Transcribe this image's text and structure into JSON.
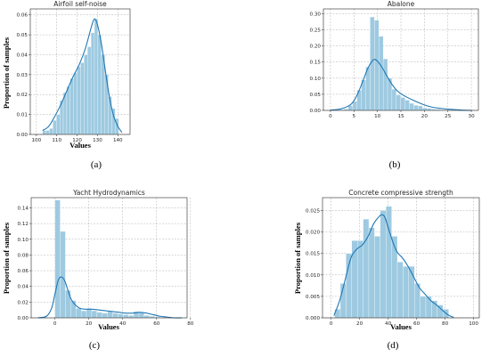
{
  "figure": {
    "colors": {
      "bar": "#9ecae1",
      "kde": "#1f77b4"
    }
  },
  "chart_data": [
    {
      "type": "bar",
      "title": "Airfoil self-noise",
      "xlabel": "Values",
      "ylabel": "Proportion of samples",
      "caption": "(a)",
      "xlim": [
        97,
        146
      ],
      "ylim": [
        0,
        0.063
      ],
      "xticks": [
        100,
        110,
        120,
        130,
        140
      ],
      "yticks": [
        0.0,
        0.01,
        0.02,
        0.03,
        0.04,
        0.05,
        0.06
      ],
      "ytick_decimals": 2,
      "grid": true,
      "bin_edges": [
        103,
        104.7,
        106.4,
        108.1,
        109.8,
        111.5,
        113.2,
        114.9,
        116.6,
        118.3,
        120,
        121.7,
        123.4,
        125.1,
        126.8,
        128.5,
        130.2,
        131.9,
        133.6,
        135.3,
        137,
        138.7,
        140.4
      ],
      "values": [
        0.002,
        0.002,
        0.003,
        0.007,
        0.01,
        0.017,
        0.021,
        0.024,
        0.028,
        0.031,
        0.034,
        0.036,
        0.04,
        0.044,
        0.051,
        0.058,
        0.05,
        0.04,
        0.03,
        0.019,
        0.013,
        0.008
      ],
      "kde": {
        "x": [
          103,
          106,
          109,
          112,
          115,
          118,
          121,
          124,
          127,
          128.5,
          130,
          132,
          134,
          136,
          138,
          140,
          142
        ],
        "y": [
          0.002,
          0.004,
          0.009,
          0.015,
          0.022,
          0.029,
          0.035,
          0.043,
          0.054,
          0.058,
          0.055,
          0.045,
          0.031,
          0.018,
          0.009,
          0.004,
          0.001
        ]
      }
    },
    {
      "type": "bar",
      "title": "Abalone",
      "xlabel": "",
      "ylabel": "",
      "caption": "(b)",
      "xlim": [
        -1.5,
        31.5
      ],
      "ylim": [
        0,
        0.315
      ],
      "xticks": [
        0,
        5,
        10,
        15,
        20,
        25,
        30
      ],
      "yticks": [
        0.0,
        0.05,
        0.1,
        0.15,
        0.2,
        0.25,
        0.3
      ],
      "ytick_decimals": 2,
      "grid": true,
      "bin_edges": [
        1,
        1.93,
        2.86,
        3.79,
        4.72,
        5.65,
        6.58,
        7.51,
        8.44,
        9.37,
        10.3,
        11.23,
        12.16,
        13.09,
        14.02,
        14.95,
        15.88,
        16.81,
        17.74,
        18.67,
        19.6,
        20.53,
        21.46,
        22.39,
        23.32,
        24.25,
        25.18,
        26.11,
        27.04,
        27.97,
        28.9
      ],
      "values": [
        0.001,
        0.002,
        0.004,
        0.015,
        0.028,
        0.063,
        0.095,
        0.135,
        0.29,
        0.28,
        0.23,
        0.16,
        0.1,
        0.066,
        0.048,
        0.04,
        0.032,
        0.022,
        0.016,
        0.014,
        0.008,
        0.006,
        0.004,
        0.003,
        0.002,
        0.002,
        0.001,
        0.001,
        0.001,
        0.001
      ],
      "kde": {
        "x": [
          0,
          2,
          4,
          5,
          6,
          7,
          8,
          9,
          9.5,
          10,
          11,
          12,
          13,
          14,
          15,
          16,
          18,
          20,
          22,
          25,
          28,
          30
        ],
        "y": [
          0.001,
          0.004,
          0.015,
          0.03,
          0.058,
          0.095,
          0.132,
          0.155,
          0.158,
          0.153,
          0.133,
          0.107,
          0.083,
          0.064,
          0.052,
          0.043,
          0.029,
          0.017,
          0.009,
          0.004,
          0.001,
          0.0
        ]
      }
    },
    {
      "type": "bar",
      "title": "Yacht Hydrodynamics",
      "xlabel": "Values",
      "ylabel": "Proportion of samples",
      "caption": "(c)",
      "xlim": [
        -14,
        78
      ],
      "ylim": [
        0,
        0.153
      ],
      "xticks": [
        0,
        20,
        40,
        60,
        80
      ],
      "yticks": [
        0.0,
        0.02,
        0.04,
        0.06,
        0.08,
        0.1,
        0.12,
        0.14
      ],
      "ytick_decimals": 2,
      "grid": true,
      "bin_edges": [
        0,
        3.1,
        6.2,
        9.3,
        12.4,
        15.5,
        18.6,
        21.7,
        24.8,
        27.9,
        31,
        34.1,
        37.2,
        40.3,
        43.4,
        46.5,
        49.6,
        52.7,
        55.8,
        58.9,
        62
      ],
      "values": [
        0.15,
        0.11,
        0.035,
        0.022,
        0.012,
        0.009,
        0.012,
        0.009,
        0.007,
        0.006,
        0.008,
        0.006,
        0.005,
        0.004,
        0.003,
        0.008,
        0.007,
        0.003,
        0.002,
        0.001
      ],
      "kde": {
        "x": [
          -10,
          -5,
          -2,
          0,
          2,
          4,
          6,
          8,
          10,
          14,
          18,
          22,
          26,
          30,
          34,
          38,
          42,
          46,
          50,
          54,
          58,
          62,
          66,
          70,
          75
        ],
        "y": [
          0.0,
          0.002,
          0.012,
          0.03,
          0.048,
          0.052,
          0.046,
          0.033,
          0.022,
          0.013,
          0.011,
          0.011,
          0.01,
          0.009,
          0.008,
          0.007,
          0.006,
          0.006,
          0.007,
          0.006,
          0.004,
          0.002,
          0.001,
          0.0,
          0.0
        ]
      }
    },
    {
      "type": "bar",
      "title": "Concrete compressive strength",
      "xlabel": "Values",
      "ylabel": "Proportion of samples",
      "caption": "(d)",
      "xlim": [
        -6,
        104
      ],
      "ylim": [
        0,
        0.028
      ],
      "xticks": [
        0,
        20,
        40,
        60,
        80,
        100
      ],
      "yticks": [
        0.0,
        0.005,
        0.01,
        0.015,
        0.02,
        0.025
      ],
      "ytick_decimals": 3,
      "grid": true,
      "bin_edges": [
        2.5,
        6.5,
        10.5,
        14.5,
        18.5,
        22.5,
        26.5,
        30.5,
        34.5,
        38.5,
        42.5,
        46.5,
        50.5,
        54.5,
        58.5,
        62.5,
        66.5,
        70.5,
        74.5,
        78.5,
        82.5
      ],
      "values": [
        0.002,
        0.008,
        0.015,
        0.018,
        0.018,
        0.023,
        0.021,
        0.019,
        0.025,
        0.026,
        0.019,
        0.013,
        0.012,
        0.012,
        0.008,
        0.005,
        0.005,
        0.004,
        0.003,
        0.002
      ],
      "kde": {
        "x": [
          2,
          6,
          10,
          14,
          18,
          22,
          26,
          30,
          34,
          36,
          38,
          42,
          46,
          50,
          54,
          58,
          62,
          66,
          70,
          74,
          78,
          82,
          86
        ],
        "y": [
          0.0005,
          0.004,
          0.009,
          0.014,
          0.016,
          0.017,
          0.019,
          0.022,
          0.0237,
          0.024,
          0.0232,
          0.019,
          0.0155,
          0.014,
          0.012,
          0.0095,
          0.007,
          0.0055,
          0.004,
          0.003,
          0.0018,
          0.0007,
          0.0001
        ]
      }
    }
  ]
}
